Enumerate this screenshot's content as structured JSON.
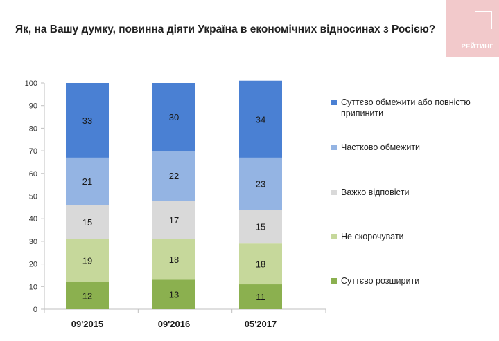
{
  "title": "Як, на Вашу думку, повинна діяти Україна в економічних відносинах з Росією?",
  "logo": {
    "text": "РЕЙТИНГ"
  },
  "chart_data": {
    "type": "bar",
    "stacked": true,
    "categories": [
      "09'2015",
      "09'2016",
      "05'2017"
    ],
    "ylim": [
      0,
      100
    ],
    "yticks": [
      0,
      10,
      20,
      30,
      40,
      50,
      60,
      70,
      80,
      90,
      100
    ],
    "grid": false,
    "legend_position": "right",
    "series": [
      {
        "name": "Суттєво розширити",
        "values": [
          12,
          13,
          11
        ],
        "color": "#8bb04f"
      },
      {
        "name": "Не скорочувати",
        "values": [
          19,
          18,
          18
        ],
        "color": "#c6d89b"
      },
      {
        "name": "Важко відповісти",
        "values": [
          15,
          17,
          15
        ],
        "color": "#d9d9d9"
      },
      {
        "name": "Частково обмежити",
        "values": [
          21,
          22,
          23
        ],
        "color": "#94b4e3"
      },
      {
        "name": "Суттєво обмежити або повністю припинити",
        "values": [
          33,
          30,
          34
        ],
        "color": "#4a80d3"
      }
    ],
    "legend_order": [
      "Суттєво обмежити або повністю припинити",
      "Частково обмежити",
      "Важко відповісти",
      "Не скорочувати",
      "Суттєво розширити"
    ]
  }
}
